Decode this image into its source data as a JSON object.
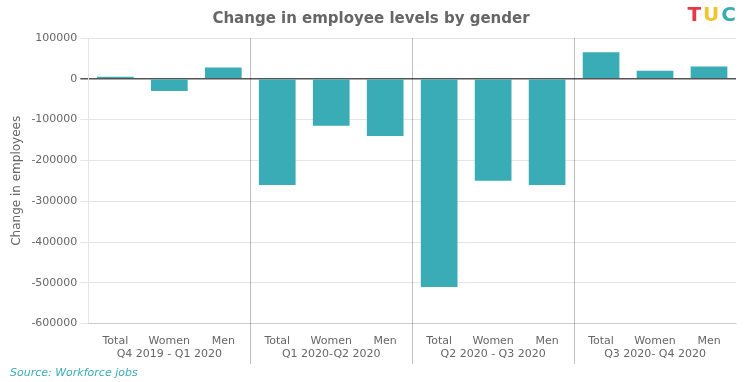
{
  "chart_data": {
    "type": "bar",
    "title": "Change in employee levels by gender",
    "ylabel": "Change in employees",
    "color": "#3aacb5",
    "groups": [
      {
        "label": "Q4 2019 - Q1 2020",
        "categories": [
          "Total",
          "Women",
          "Men"
        ],
        "values": [
          5000,
          -30000,
          28000
        ]
      },
      {
        "label": "Q1 2020-Q2 2020",
        "categories": [
          "Total",
          "Women",
          "Men"
        ],
        "values": [
          -260000,
          -115000,
          -140000
        ]
      },
      {
        "label": "Q2 2020 - Q3 2020",
        "categories": [
          "Total",
          "Women",
          "Men"
        ],
        "values": [
          -510000,
          -250000,
          -260000
        ]
      },
      {
        "label": "Q3 2020- Q4 2020",
        "categories": [
          "Total",
          "Women",
          "Men"
        ],
        "values": [
          65000,
          20000,
          30000
        ]
      }
    ],
    "ylim": [
      -600000,
      100000
    ],
    "yticks": [
      100000,
      0,
      -100000,
      -200000,
      -300000,
      -400000,
      -500000,
      -600000
    ],
    "grid": true,
    "annotations": [
      {
        "text": "Source: Workforce jobs",
        "color": "#3aacb5"
      },
      {
        "text": "TUC",
        "colors": [
          "#e63946",
          "#f4c430",
          "#3aacb5"
        ]
      }
    ]
  }
}
